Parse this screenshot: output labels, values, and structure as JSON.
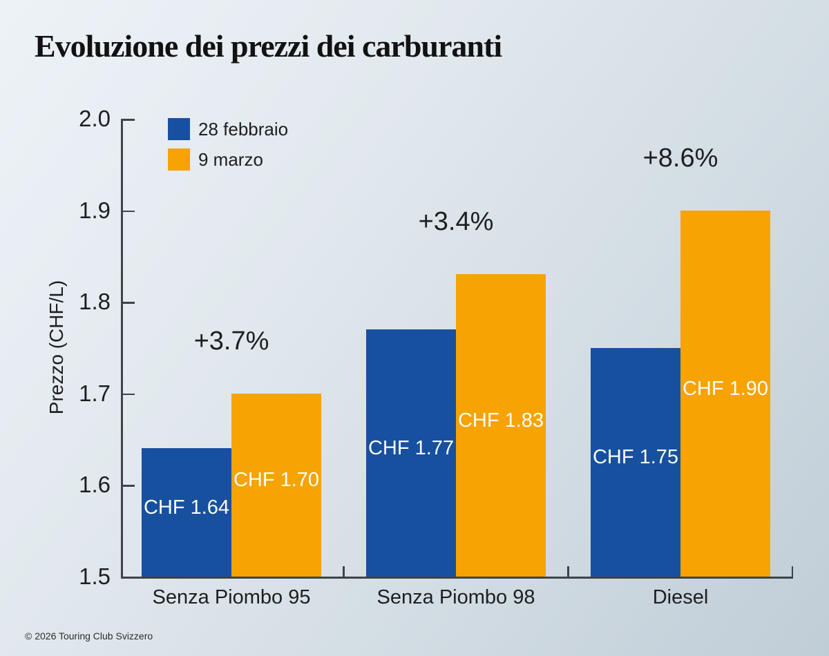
{
  "title": "Evoluzione dei prezzi dei carburanti",
  "footer": "© 2026 Touring Club Svizzero",
  "chart_data": {
    "type": "bar",
    "title": "Evoluzione dei prezzi dei carburanti",
    "categories": [
      "Senza Piombo 95",
      "Senza Piombo 98",
      "Diesel"
    ],
    "series": [
      {
        "name": "28 febbraio",
        "color": "#17509E",
        "values": [
          1.64,
          1.77,
          1.75
        ],
        "labels": [
          "CHF 1.64",
          "CHF 1.77",
          "CHF 1.75"
        ]
      },
      {
        "name": "9 marzo",
        "color": "#F6A303",
        "values": [
          1.7,
          1.83,
          1.9
        ],
        "labels": [
          "CHF 1.70",
          "CHF 1.83",
          "CHF 1.90"
        ]
      }
    ],
    "pct_changes": [
      "+3.7%",
      "+3.4%",
      "+8.6%"
    ],
    "ylabel": "Prezzo (CHF/L)",
    "yticks": [
      "2.0",
      "1.9",
      "1.8",
      "1.7",
      "1.6",
      "1.5"
    ],
    "ylim": [
      1.5,
      2.0
    ],
    "grid": "off",
    "legend_position": "top-left-inside",
    "value_label_color": "#FFFFFF",
    "axis_color": "#3D4348",
    "text_color": "#1D1E20"
  }
}
